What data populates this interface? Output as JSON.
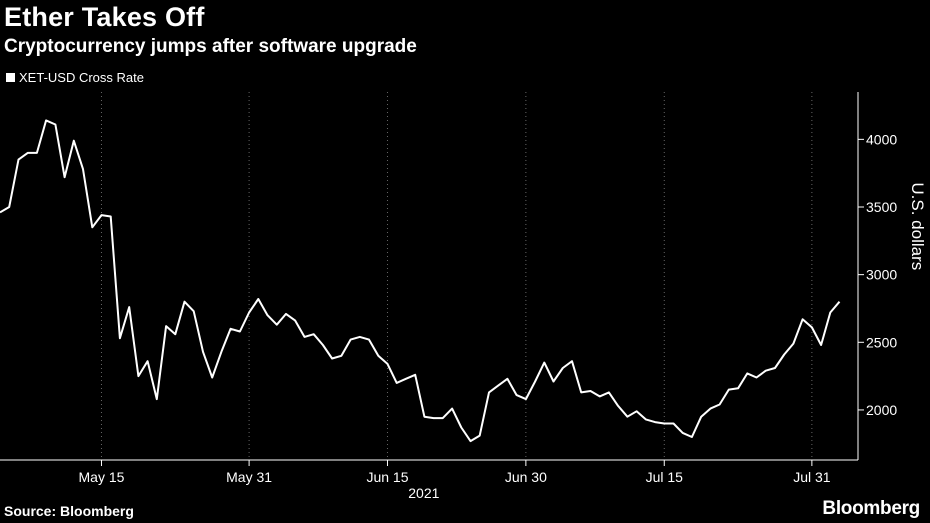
{
  "chart_data": {
    "type": "line",
    "title": "Ether Takes Off",
    "subtitle": "Cryptocurrency jumps after software upgrade",
    "legend": [
      "XET-USD Cross Rate"
    ],
    "legend_placement": "top-left",
    "xlabel": "2021",
    "ylabel": "U.S. dollars",
    "ylim": [
      1630,
      4350
    ],
    "yticks": [
      2000,
      2500,
      3000,
      3500,
      4000
    ],
    "xticks": [
      {
        "label": "May 15",
        "day": 15
      },
      {
        "label": "May 31",
        "day": 31
      },
      {
        "label": "Jun 15",
        "day": 46
      },
      {
        "label": "Jun 30",
        "day": 61
      },
      {
        "label": "Jul 15",
        "day": 76
      },
      {
        "label": "Jul 31",
        "day": 92
      }
    ],
    "grid": "vertical-dotted",
    "x_range": [
      "May 4",
      "Aug 6"
    ],
    "series": [
      {
        "name": "XET-USD Cross Rate",
        "color": "#ffffff",
        "values": [
          3460,
          3500,
          3850,
          3900,
          3900,
          4140,
          4110,
          3720,
          3990,
          3780,
          3350,
          3440,
          3430,
          2530,
          2760,
          2250,
          2360,
          2080,
          2620,
          2560,
          2800,
          2730,
          2430,
          2240,
          2430,
          2600,
          2580,
          2720,
          2820,
          2700,
          2630,
          2710,
          2660,
          2540,
          2560,
          2480,
          2380,
          2400,
          2520,
          2540,
          2520,
          2400,
          2340,
          2200,
          2230,
          2260,
          1950,
          1940,
          1940,
          2010,
          1870,
          1770,
          1810,
          2130,
          2180,
          2230,
          2110,
          2080,
          2210,
          2350,
          2210,
          2310,
          2360,
          2130,
          2140,
          2100,
          2130,
          2030,
          1950,
          1990,
          1930,
          1910,
          1900,
          1900,
          1830,
          1800,
          1950,
          2010,
          2040,
          2150,
          2160,
          2270,
          2240,
          2290,
          2310,
          2410,
          2490,
          2670,
          2610,
          2480,
          2720,
          2800
        ]
      }
    ]
  },
  "footer": {
    "source": "Source: Bloomberg",
    "brand": "Bloomberg"
  }
}
